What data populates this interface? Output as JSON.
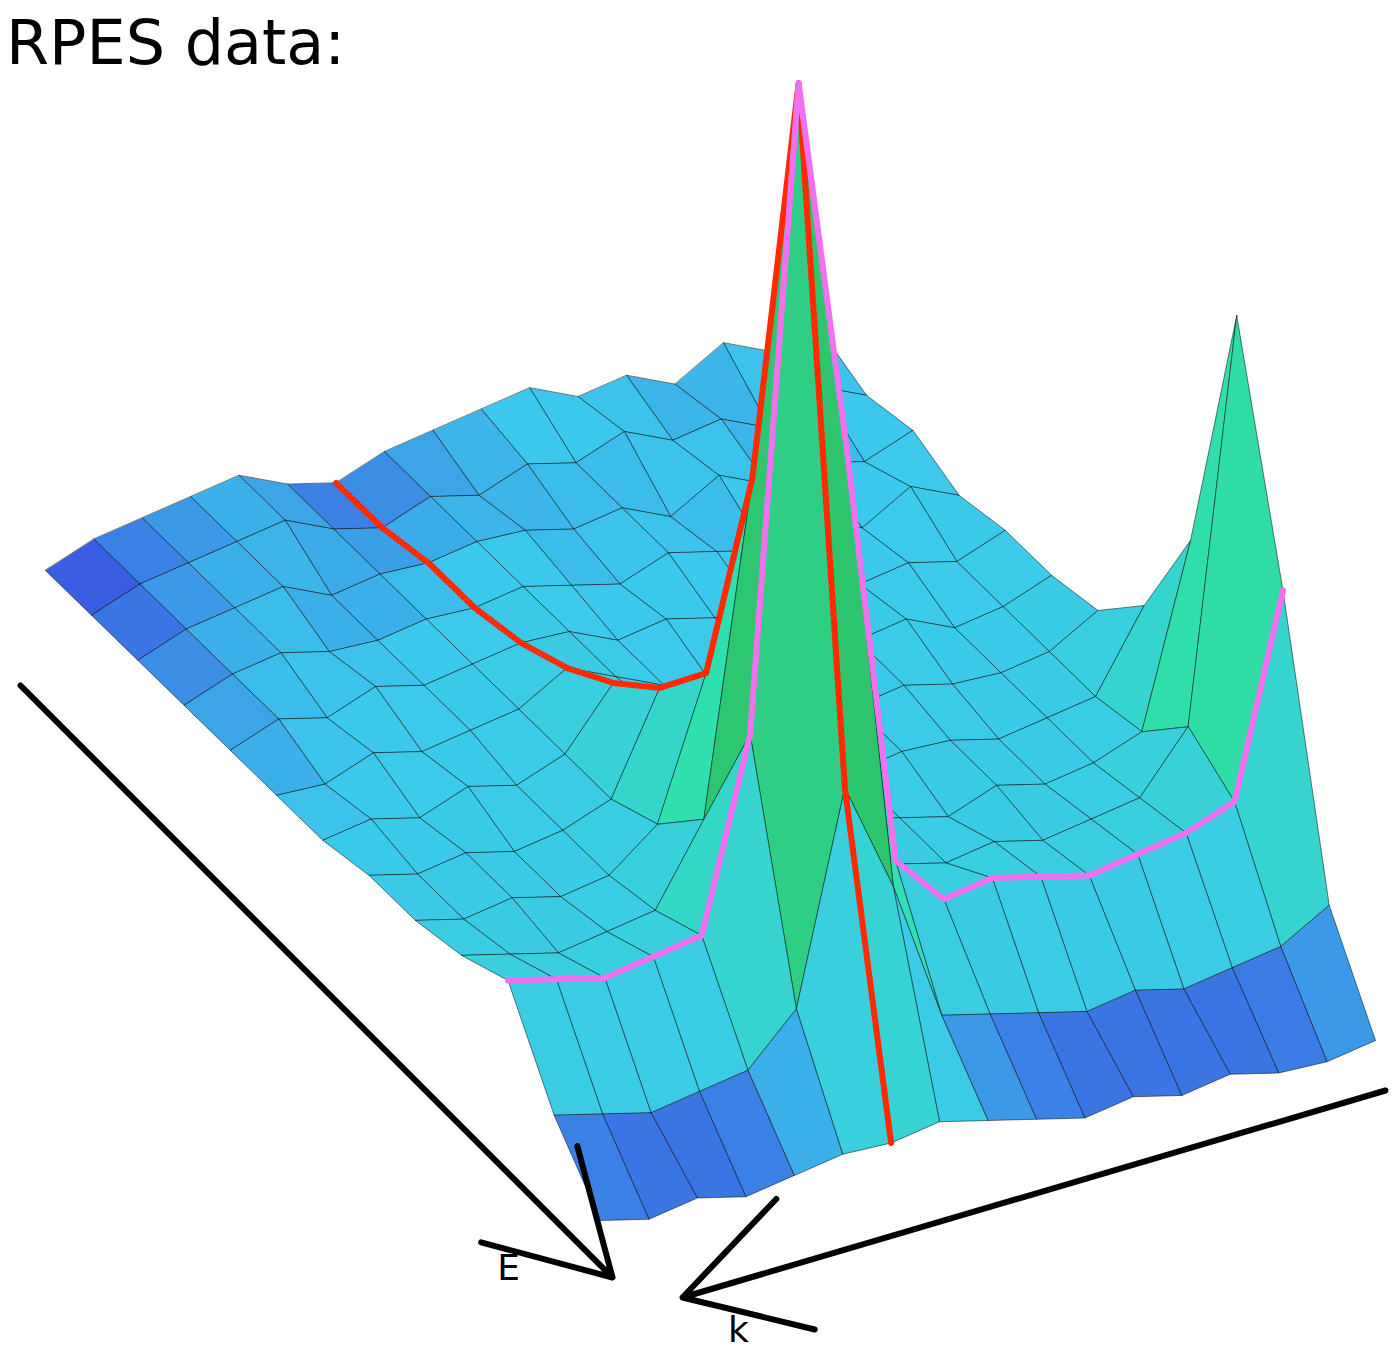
{
  "chart_data": {
    "type": "surface",
    "title": "RPES data:",
    "x_label": "k",
    "y_label": "E",
    "tick_labels": false,
    "k": [
      0,
      0.0625,
      0.125,
      0.1875,
      0.25,
      0.3125,
      0.375,
      0.4375,
      0.5,
      0.5625,
      0.625,
      0.6875,
      0.75,
      0.8125,
      0.875,
      0.9375,
      1
    ],
    "e": [
      0,
      0.0833,
      0.1667,
      0.25,
      0.3333,
      0.4167,
      0.5,
      0.5833,
      0.6667,
      0.75,
      0.8333,
      0.9167,
      1
    ],
    "klim": [
      0,
      1
    ],
    "elim": [
      0,
      1
    ],
    "zlim": [
      0,
      100
    ],
    "intensity": [
      [
        9,
        8,
        10,
        7,
        9,
        8,
        10,
        9,
        8,
        7,
        5,
        6,
        8,
        7,
        6,
        5,
        3
      ],
      [
        8,
        10,
        7,
        9,
        8,
        10,
        8,
        9,
        7,
        8,
        6,
        7,
        9,
        8,
        7,
        6,
        4
      ],
      [
        10,
        8,
        9,
        8,
        10,
        7,
        9,
        8,
        9,
        9,
        8,
        8,
        7,
        9,
        8,
        7,
        5
      ],
      [
        9,
        11,
        8,
        10,
        8,
        9,
        10,
        8,
        9,
        10,
        9,
        9,
        8,
        8,
        9,
        8,
        6
      ],
      [
        11,
        9,
        10,
        9,
        11,
        8,
        9,
        10,
        9,
        11,
        11,
        10,
        9,
        10,
        8,
        9,
        7
      ],
      [
        12,
        10,
        9,
        11,
        10,
        9,
        11,
        9,
        10,
        12,
        14,
        11,
        10,
        9,
        10,
        8,
        8
      ],
      [
        14,
        11,
        10,
        10,
        11,
        10,
        10,
        11,
        11,
        14,
        18,
        12,
        10,
        11,
        9,
        10,
        9
      ],
      [
        20,
        12,
        11,
        10,
        11,
        11,
        10,
        11,
        12,
        17,
        23,
        13,
        11,
        10,
        11,
        10,
        11
      ],
      [
        32,
        14,
        12,
        11,
        12,
        10,
        11,
        12,
        14,
        22,
        30,
        16,
        12,
        11,
        12,
        11,
        12
      ],
      [
        60,
        20,
        14,
        13,
        12,
        13,
        12,
        13,
        17,
        36,
        55,
        22,
        14,
        13,
        12,
        13,
        14
      ],
      [
        38,
        18,
        16,
        15,
        14,
        15,
        16,
        15,
        20,
        62,
        100,
        36,
        17,
        16,
        15,
        16,
        17
      ],
      [
        12,
        9,
        8,
        7,
        8,
        7,
        8,
        9,
        10,
        24,
        35,
        14,
        9,
        8,
        7,
        8,
        9
      ],
      [
        4,
        3,
        3,
        4,
        3,
        4,
        3,
        4,
        5,
        6,
        5,
        5,
        4,
        3,
        4,
        3,
        4
      ]
    ],
    "cuts": [
      {
        "color": "#ff2a00",
        "k": 0.625
      },
      {
        "color": "#f070f0",
        "e": 0.8333
      }
    ]
  }
}
